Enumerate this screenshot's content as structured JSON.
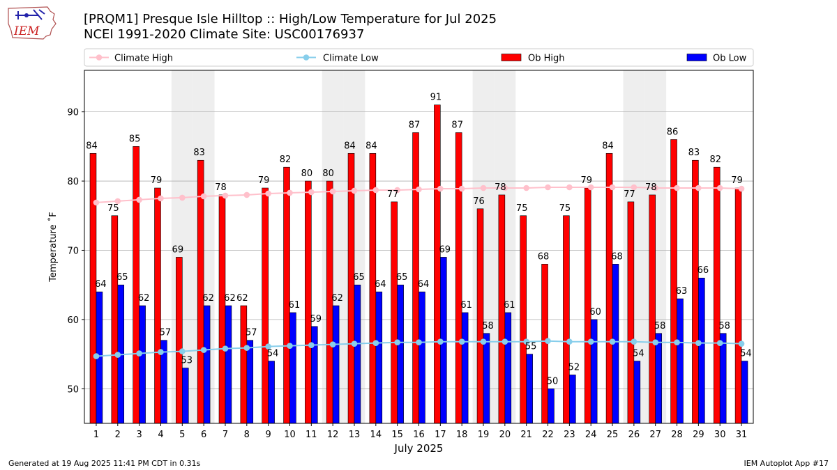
{
  "logo": {
    "text": "IEM"
  },
  "title": {
    "line1": "[PRQM1] Presque Isle Hilltop :: High/Low Temperature for Jul 2025",
    "line2": "NCEI 1991-2020 Climate Site: USC00176937"
  },
  "footer": {
    "left": "Generated at 19 Aug 2025 11:41 PM CDT in 0.31s",
    "right": "IEM Autoplot App #17"
  },
  "chart_data": {
    "type": "bar",
    "title": "[PRQM1] Presque Isle Hilltop :: High/Low Temperature for Jul 2025",
    "subtitle": "NCEI 1991-2020 Climate Site: USC00176937",
    "xlabel": "July 2025",
    "ylabel": "Temperature ˚F",
    "ylim": [
      45,
      96
    ],
    "yticks": [
      50,
      60,
      70,
      80,
      90
    ],
    "grid": true,
    "legend_position": "top",
    "weekend_shading_days": [
      5,
      6,
      12,
      13,
      19,
      20,
      26,
      27
    ],
    "categories": [
      "1",
      "2",
      "3",
      "4",
      "5",
      "6",
      "7",
      "8",
      "9",
      "10",
      "11",
      "12",
      "13",
      "14",
      "15",
      "16",
      "17",
      "18",
      "19",
      "20",
      "21",
      "22",
      "23",
      "24",
      "25",
      "26",
      "27",
      "28",
      "29",
      "30",
      "31"
    ],
    "series": [
      {
        "name": "Ob High",
        "type": "bar",
        "color": "#ff0000",
        "values": [
          84,
          75,
          85,
          79,
          69,
          83,
          78,
          62,
          79,
          82,
          80,
          80,
          84,
          84,
          77,
          87,
          91,
          87,
          76,
          78,
          75,
          68,
          75,
          79,
          84,
          77,
          78,
          86,
          83,
          82,
          79
        ]
      },
      {
        "name": "Ob Low",
        "type": "bar",
        "color": "#0000ff",
        "values": [
          64,
          65,
          62,
          57,
          53,
          62,
          62,
          57,
          54,
          61,
          59,
          62,
          65,
          64,
          65,
          64,
          69,
          61,
          58,
          61,
          55,
          50,
          52,
          60,
          68,
          54,
          58,
          63,
          66,
          58,
          54
        ]
      },
      {
        "name": "Climate High",
        "type": "line",
        "color": "#ffc0cb",
        "values": [
          76.9,
          77.1,
          77.3,
          77.5,
          77.6,
          77.8,
          77.9,
          78.0,
          78.2,
          78.3,
          78.4,
          78.5,
          78.6,
          78.7,
          78.7,
          78.8,
          78.9,
          78.9,
          79.0,
          79.0,
          79.0,
          79.1,
          79.1,
          79.1,
          79.1,
          79.1,
          79.0,
          79.0,
          79.0,
          79.0,
          78.9
        ]
      },
      {
        "name": "Climate Low",
        "type": "line",
        "color": "#87ceeb",
        "values": [
          54.7,
          54.9,
          55.1,
          55.3,
          55.4,
          55.6,
          55.8,
          55.9,
          56.1,
          56.2,
          56.3,
          56.4,
          56.5,
          56.6,
          56.7,
          56.7,
          56.8,
          56.8,
          56.8,
          56.8,
          56.8,
          56.9,
          56.8,
          56.8,
          56.8,
          56.8,
          56.7,
          56.7,
          56.6,
          56.6,
          56.5
        ]
      }
    ]
  }
}
